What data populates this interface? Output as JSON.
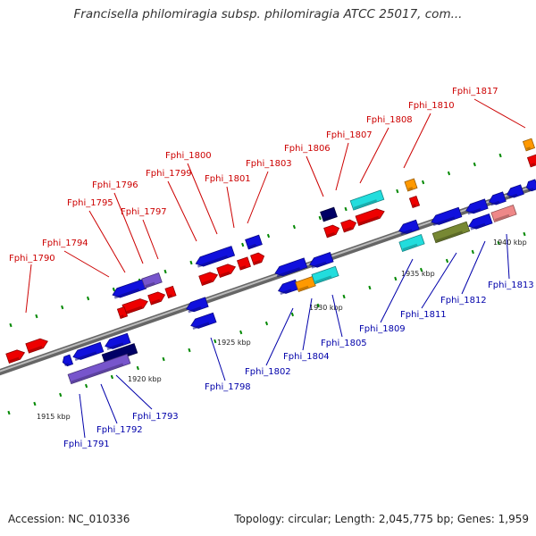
{
  "title": "Francisella philomiragia subsp. philomiragia ATCC 25017, com...",
  "footer": {
    "accession": "Accession: NC_010336",
    "summary": "Topology: circular; Length: 2,045,775 bp; Genes: 1,959"
  },
  "colors": {
    "forward_gene": "#ee0000",
    "reverse_gene": "#1010dd",
    "cyan_feature": "#22dddd",
    "orange_feature": "#ff9900",
    "navy_feature": "#000066",
    "purple_feature": "#7755cc",
    "olive_feature": "#778833",
    "pink_feature": "#ee8888",
    "backbone": "#888888",
    "tick": "#008800",
    "label_forward": "#cc0000",
    "label_reverse": "#0000aa"
  },
  "scale_labels": [
    "1915 kbp",
    "1920 kbp",
    "1925 kbp",
    "1930 kbp",
    "1935 kbp",
    "1940 kbp"
  ],
  "genes_forward": [
    "Fphi_1790",
    "Fphi_1794",
    "Fphi_1795",
    "Fphi_1796",
    "Fphi_1797",
    "Fphi_1799",
    "Fphi_1800",
    "Fphi_1801",
    "Fphi_1803",
    "Fphi_1806",
    "Fphi_1807",
    "Fphi_1808",
    "Fphi_1810",
    "Fphi_1817"
  ],
  "genes_reverse": [
    "Fphi_1791",
    "Fphi_1792",
    "Fphi_1793",
    "Fphi_1798",
    "Fphi_1802",
    "Fphi_1804",
    "Fphi_1805",
    "Fphi_1809",
    "Fphi_1811",
    "Fphi_1812",
    "Fphi_1813"
  ]
}
